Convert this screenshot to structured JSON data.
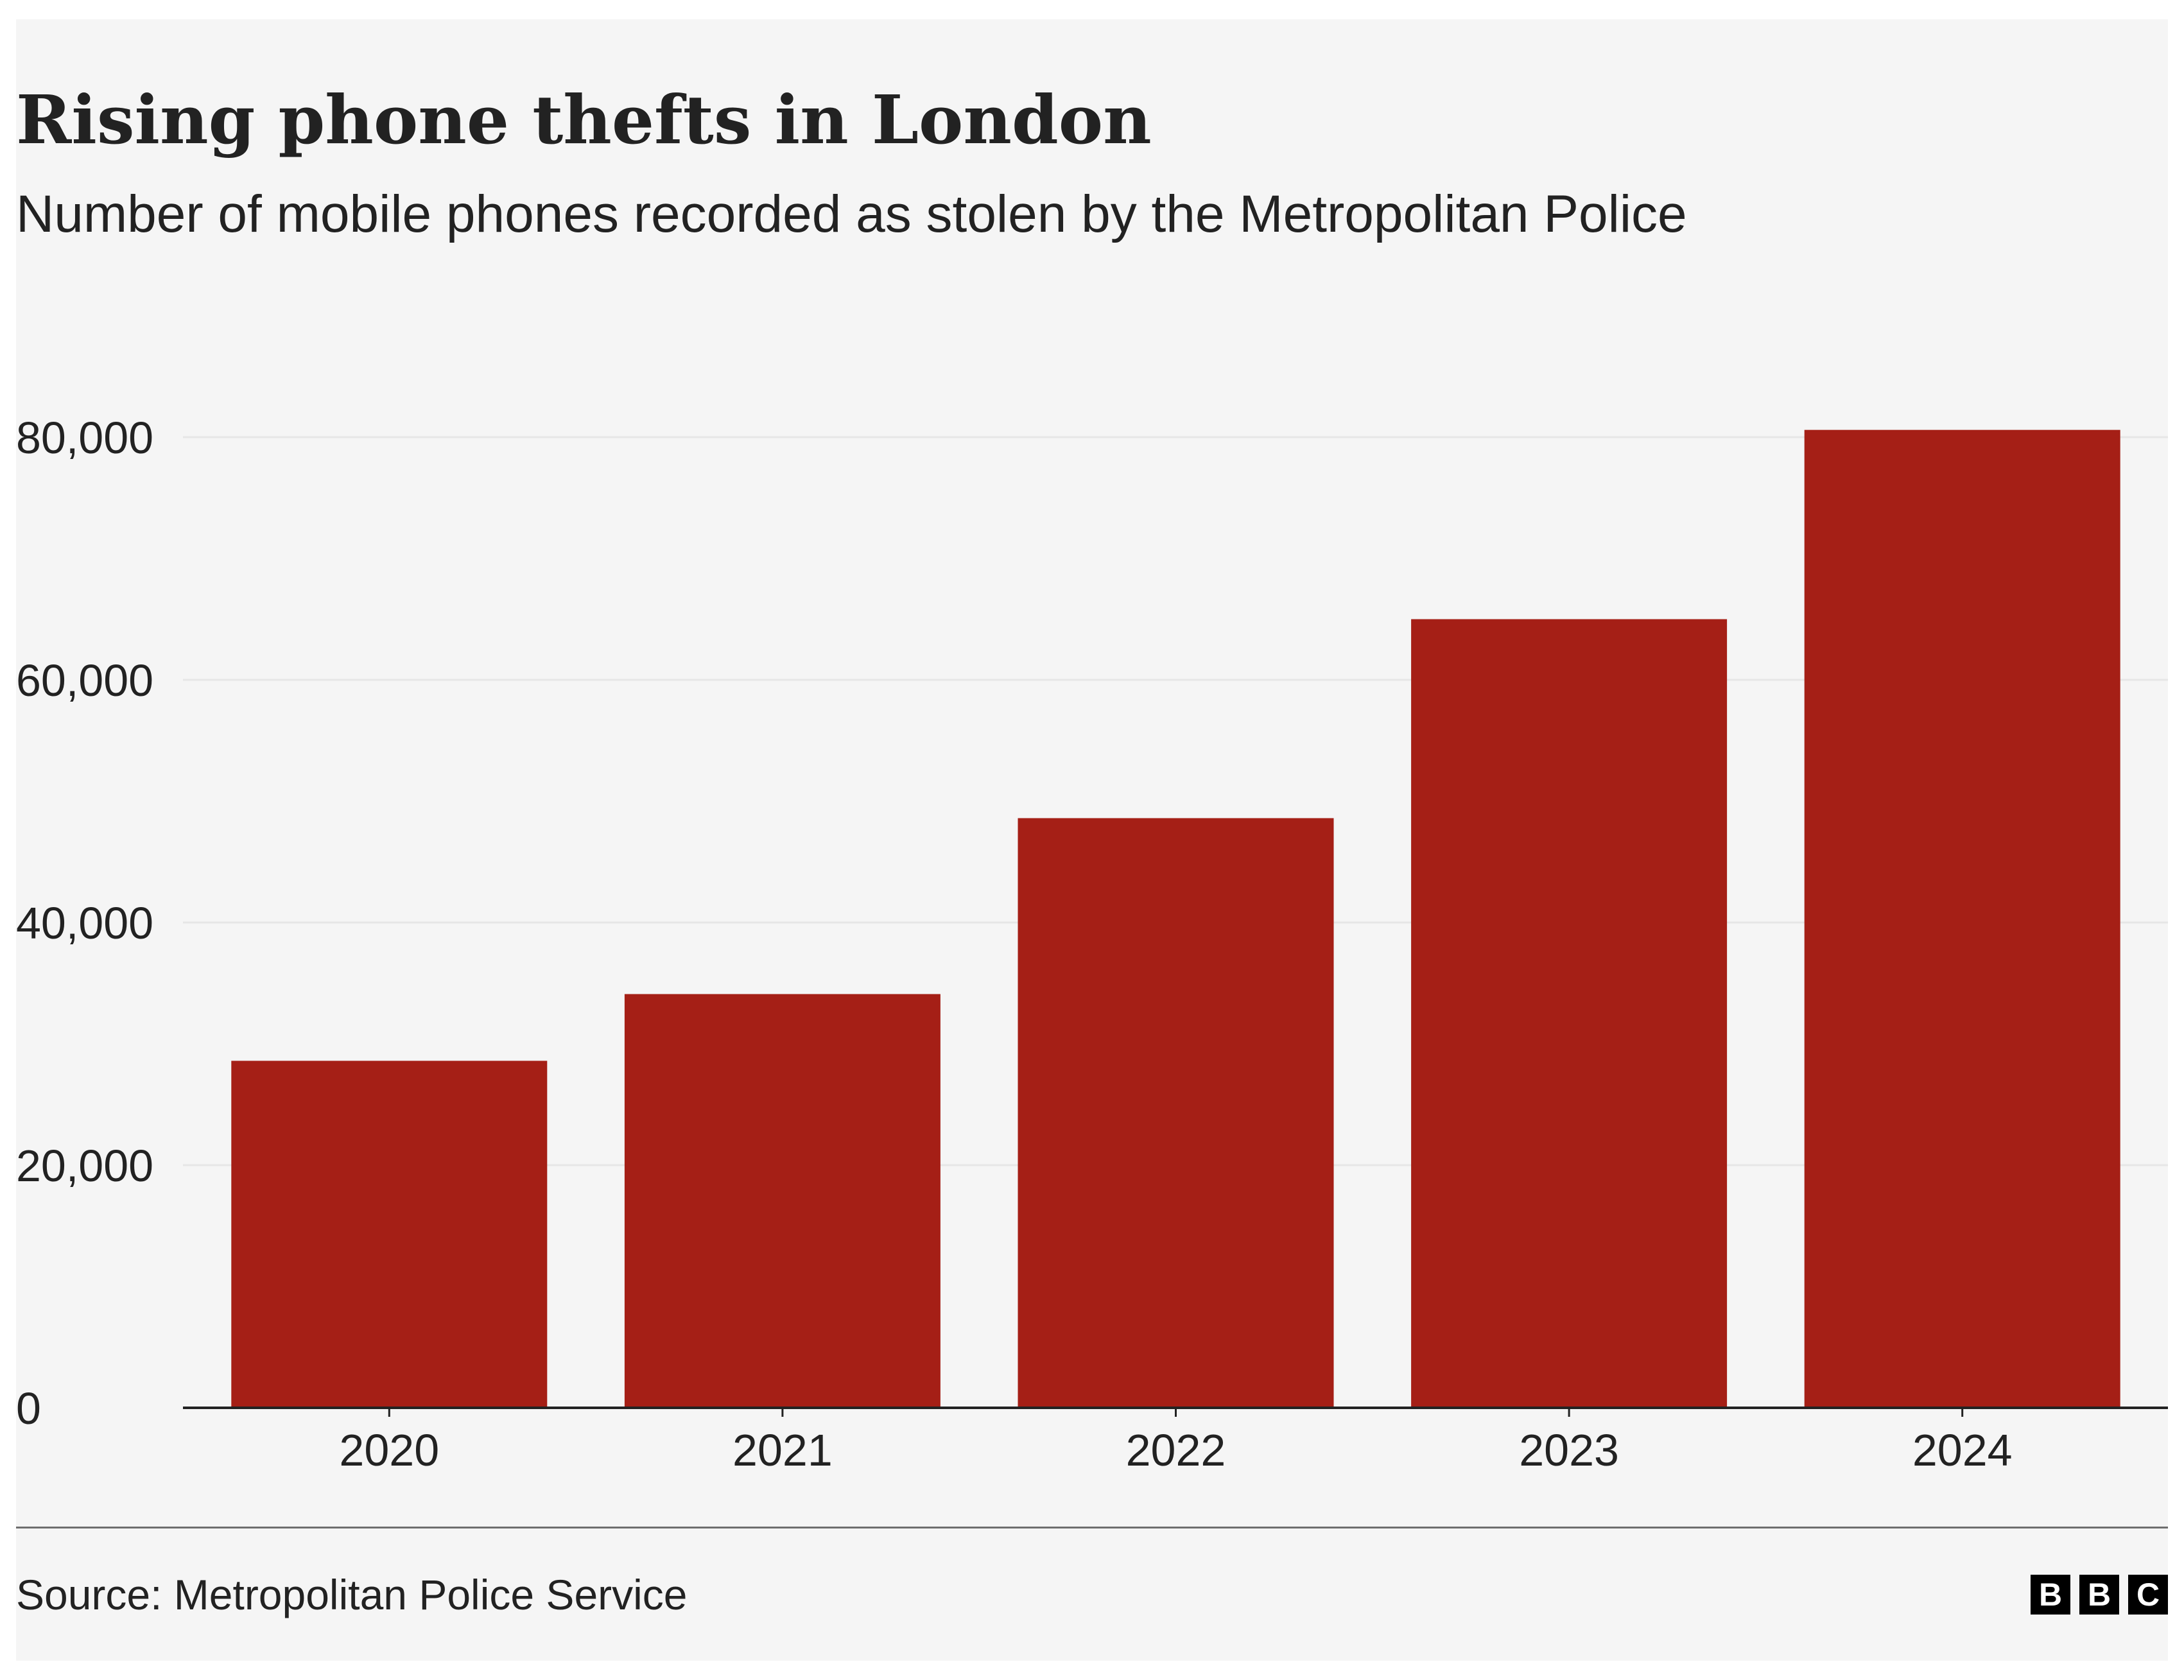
{
  "chart_data": {
    "type": "bar",
    "title": "Rising phone thefts in London",
    "subtitle": "Number of mobile phones recorded as stolen by the Metropolitan Police",
    "categories": [
      "2020",
      "2021",
      "2022",
      "2023",
      "2024"
    ],
    "values": [
      28600,
      34100,
      48600,
      65000,
      80600
    ],
    "ylim": [
      0,
      80000
    ],
    "yticks": [
      0,
      20000,
      40000,
      60000,
      80000
    ],
    "ytick_labels": [
      "0",
      "20,000",
      "40,000",
      "60,000",
      "80,000"
    ],
    "xlabel": "",
    "ylabel": "",
    "grid": true,
    "legend": "none"
  },
  "colors": {
    "bar": "#a51f16",
    "background": "#f5f5f5",
    "gridline": "#e6e6e6",
    "axis": "#222222",
    "text": "#222222"
  },
  "footer": {
    "source": "Source: Metropolitan Police Service",
    "logo_letters": [
      "B",
      "B",
      "C"
    ]
  }
}
